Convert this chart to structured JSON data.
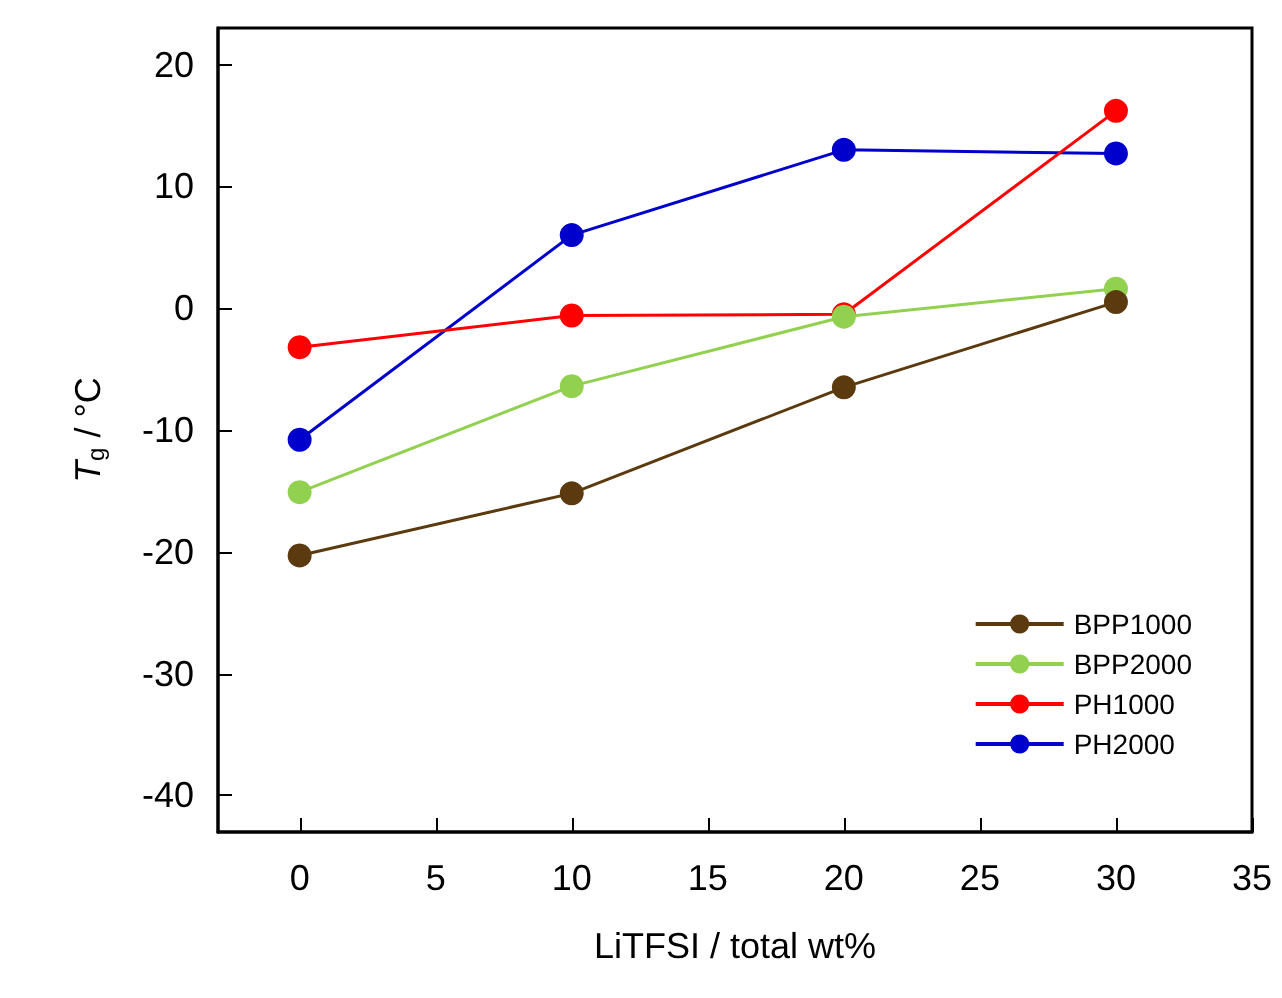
{
  "chart_data": {
    "type": "line",
    "xlabel": "LiTFSI / total wt%",
    "ylabel": "T$_{g}$ / °C",
    "x": [
      0,
      10,
      20,
      30
    ],
    "series": [
      {
        "name": "BPP1000",
        "color": "#5c3a0f",
        "values": [
          -20.3,
          -15.2,
          -6.5,
          0.5
        ]
      },
      {
        "name": "BPP2000",
        "color": "#92d050",
        "values": [
          -15.1,
          -6.4,
          -0.7,
          1.6
        ]
      },
      {
        "name": "PH1000",
        "color": "#ff0000",
        "values": [
          -3.2,
          -0.6,
          -0.5,
          16.2
        ]
      },
      {
        "name": "PH2000",
        "color": "#0000cc",
        "values": [
          -10.8,
          6.0,
          13.0,
          12.7
        ]
      }
    ],
    "xlim": [
      -3,
      35
    ],
    "xticks": [
      0,
      5,
      10,
      15,
      20,
      25,
      30,
      35
    ],
    "ylim": [
      -43,
      23
    ],
    "yticks": [
      -40,
      -30,
      -20,
      -10,
      0,
      10,
      20
    ],
    "grid": false,
    "legend": "bottom right",
    "marker": "circle",
    "line_style": "solid"
  }
}
